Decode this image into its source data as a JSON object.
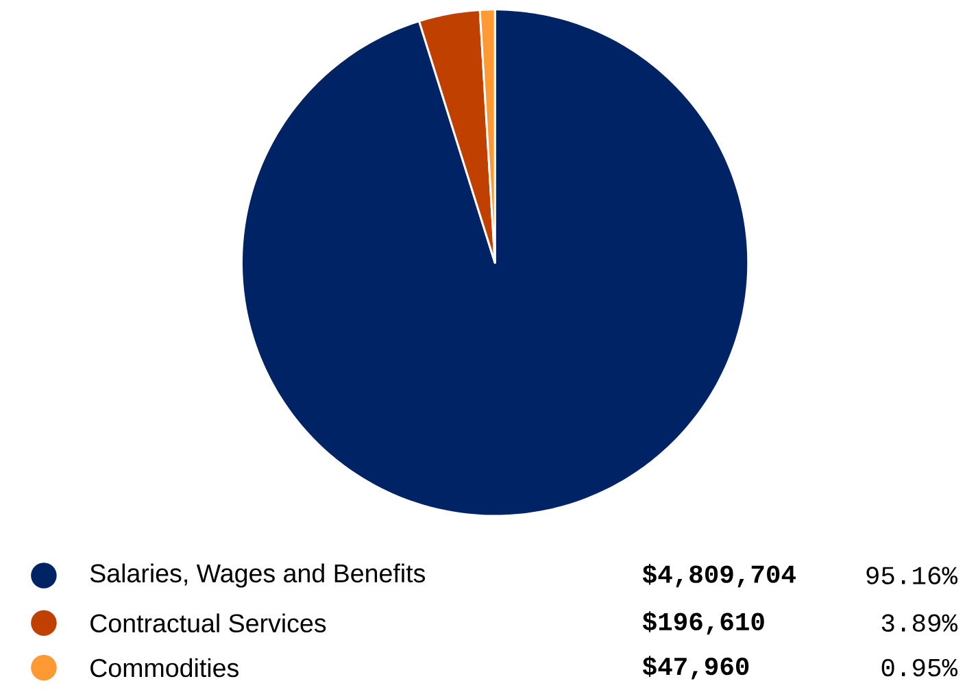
{
  "chart_data": {
    "type": "pie",
    "categories": [
      "Salaries, Wages and Benefits",
      "Contractual Services",
      "Commodities"
    ],
    "values": [
      4809704,
      196610,
      47960
    ],
    "value_labels": [
      "$4,809,704",
      "$196,610",
      "$47,960"
    ],
    "annotations": [
      "95.16%",
      "3.89%",
      "0.95%"
    ],
    "colors": [
      "#002366",
      "#c04000",
      "#ff9933"
    ],
    "legend": "bottom"
  }
}
